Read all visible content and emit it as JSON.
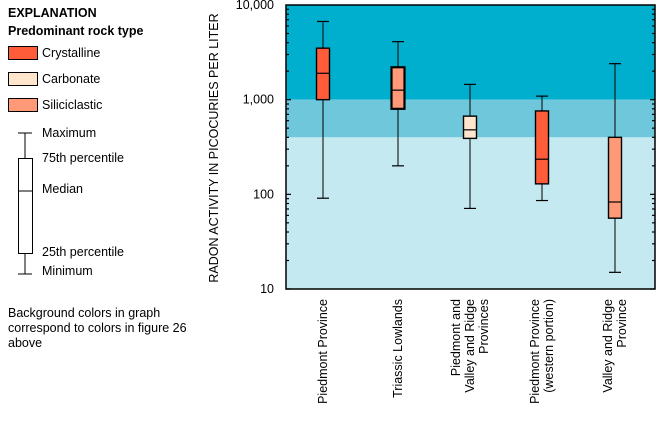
{
  "legend": {
    "title": "EXPLANATION",
    "subtitle": "Predominant rock type",
    "rock_types": [
      {
        "label": "Crystalline",
        "color": "#FF5C3A"
      },
      {
        "label": "Carbonate",
        "color": "#FFE5CC"
      },
      {
        "label": "Siliciclastic",
        "color": "#FF9977"
      }
    ],
    "boxplot_key": {
      "maximum": "Maximum",
      "p75": "75th percentile",
      "median": "Median",
      "p25": "25th percentile",
      "minimum": "Minimum"
    },
    "note": "Background colors in graph correspond to colors in figure 26 above"
  },
  "chart_data": {
    "type": "boxplot",
    "ylabel": "RADON ACTIVITY IN PICOCURIES PER LITER",
    "yscale": "log",
    "ylim": [
      10,
      10000
    ],
    "yticks": [
      10,
      100,
      1000,
      10000
    ],
    "ytick_labels": [
      "10",
      "100",
      "1,000",
      "10,000"
    ],
    "background_bands": [
      {
        "from": 1000,
        "to": 10000,
        "color": "#00AFCD"
      },
      {
        "from": 400,
        "to": 1000,
        "color": "#6EC7DA"
      },
      {
        "from": 10,
        "to": 400,
        "color": "#C4E9F1"
      }
    ],
    "categories": [
      "Piedmont Province",
      "Triassic Lowlands",
      "Piedmont and Valley and Ridge Provinces",
      "Piedmont Province (western portion)",
      "Valley and Ridge Province"
    ],
    "category_label_lines": [
      [
        "Piedmont Province"
      ],
      [
        "Triassic Lowlands"
      ],
      [
        "Piedmont and",
        "Valley and Ridge",
        "Provinces"
      ],
      [
        "Piedmont Province",
        "(western portion)"
      ],
      [
        "Valley and Ridge",
        "Province"
      ]
    ],
    "series": [
      {
        "name": "Piedmont Province",
        "rock_type": "Crystalline",
        "min": 91,
        "q1": 1000,
        "median": 1900,
        "q3": 3500,
        "max": 6700
      },
      {
        "name": "Triassic Lowlands",
        "rock_type": "Siliciclastic",
        "min": 200,
        "q1": 800,
        "median": 1260,
        "q3": 2200,
        "max": 4100
      },
      {
        "name": "Piedmont and Valley and Ridge Provinces",
        "rock_type": "Carbonate",
        "min": 71,
        "q1": 390,
        "median": 480,
        "q3": 670,
        "max": 1450
      },
      {
        "name": "Piedmont Province (western portion)",
        "rock_type": "Crystalline",
        "min": 86,
        "q1": 129,
        "median": 235,
        "q3": 760,
        "max": 1090
      },
      {
        "name": "Valley and Ridge Province",
        "rock_type": "Siliciclastic",
        "min": 15,
        "q1": 56,
        "median": 83,
        "q3": 400,
        "max": 2400
      }
    ]
  }
}
